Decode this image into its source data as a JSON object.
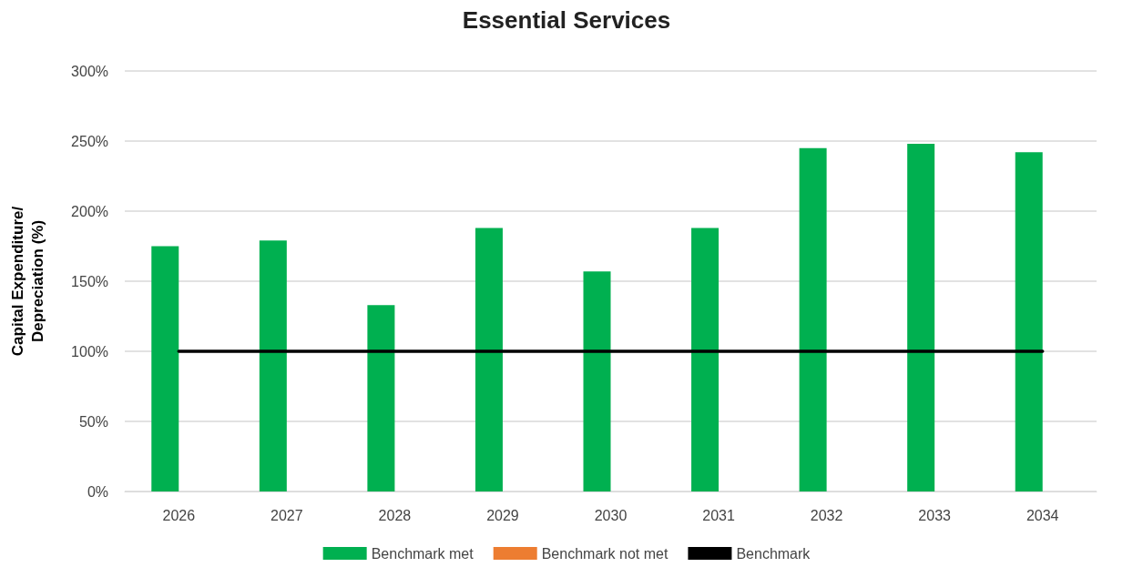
{
  "chart_data": {
    "type": "bar",
    "title": "Essential Services",
    "ylabel": "Capital Expenditure/\nDepreciation (%)",
    "categories": [
      "2026",
      "2027",
      "2028",
      "2029",
      "2030",
      "2031",
      "2032",
      "2033",
      "2034"
    ],
    "series": [
      {
        "name": "Benchmark met",
        "color": "#00b050",
        "values": [
          175,
          179,
          133,
          188,
          157,
          188,
          245,
          248,
          242
        ]
      },
      {
        "name": "Benchmark not met",
        "color": "#ed7d31",
        "values": [
          null,
          null,
          null,
          null,
          null,
          null,
          null,
          null,
          null
        ]
      },
      {
        "name": "Benchmark",
        "type": "line",
        "color": "#000000",
        "values": [
          100,
          100,
          100,
          100,
          100,
          100,
          100,
          100,
          100
        ]
      }
    ],
    "ylim": [
      0,
      300
    ],
    "yticks": [
      {
        "value": 0,
        "label": "0%"
      },
      {
        "value": 50,
        "label": "50%"
      },
      {
        "value": 100,
        "label": "100%"
      },
      {
        "value": 150,
        "label": "150%"
      },
      {
        "value": 200,
        "label": "200%"
      },
      {
        "value": 250,
        "label": "250%"
      },
      {
        "value": 300,
        "label": "300%"
      }
    ],
    "grid": "y",
    "legend": "bottom",
    "marker": "none",
    "line_style": "solid"
  }
}
